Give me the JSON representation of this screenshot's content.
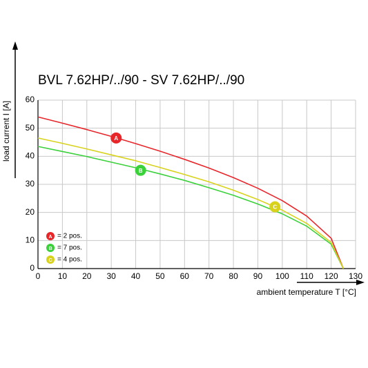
{
  "chart_data": {
    "type": "line",
    "title": "BVL 7.62HP/../90 - SV 7.62HP/../90",
    "x_label": "ambient temperature T [°C]",
    "y_label": "load current I [A]",
    "x": [
      0,
      10,
      20,
      30,
      40,
      50,
      60,
      70,
      80,
      90,
      100,
      110,
      120,
      125
    ],
    "series": [
      {
        "name": "= 2 pos.",
        "marker_label": "A",
        "color": "#e8262a",
        "marker": {
          "x": 32,
          "y": 46.5
        },
        "values": [
          54,
          51.8,
          49.5,
          47.1,
          44.5,
          41.8,
          38.9,
          35.8,
          32.4,
          28.6,
          24.2,
          18.7,
          10.8,
          0
        ]
      },
      {
        "name": "= 7 pos.",
        "marker_label": "B",
        "color": "#3ad13a",
        "marker": {
          "x": 42,
          "y": 35
        },
        "values": [
          43.5,
          41.7,
          39.9,
          37.9,
          35.9,
          33.7,
          31.4,
          28.8,
          26.1,
          23.0,
          19.5,
          15.1,
          8.7,
          0
        ]
      },
      {
        "name": "= 4 pos.",
        "marker_label": "C",
        "color": "#d8d21c",
        "marker": {
          "x": 97,
          "y": 22
        },
        "values": [
          46.5,
          44.6,
          42.6,
          40.5,
          38.4,
          36.0,
          33.5,
          30.9,
          27.9,
          24.6,
          20.8,
          16.1,
          9.3,
          0
        ]
      }
    ],
    "xlim": [
      0,
      130
    ],
    "xticks": [
      0,
      10,
      20,
      30,
      40,
      50,
      60,
      70,
      80,
      90,
      100,
      110,
      120,
      130
    ],
    "ylim": [
      0,
      60
    ],
    "yticks": [
      0,
      10,
      20,
      30,
      40,
      50,
      60
    ],
    "grid": true
  }
}
